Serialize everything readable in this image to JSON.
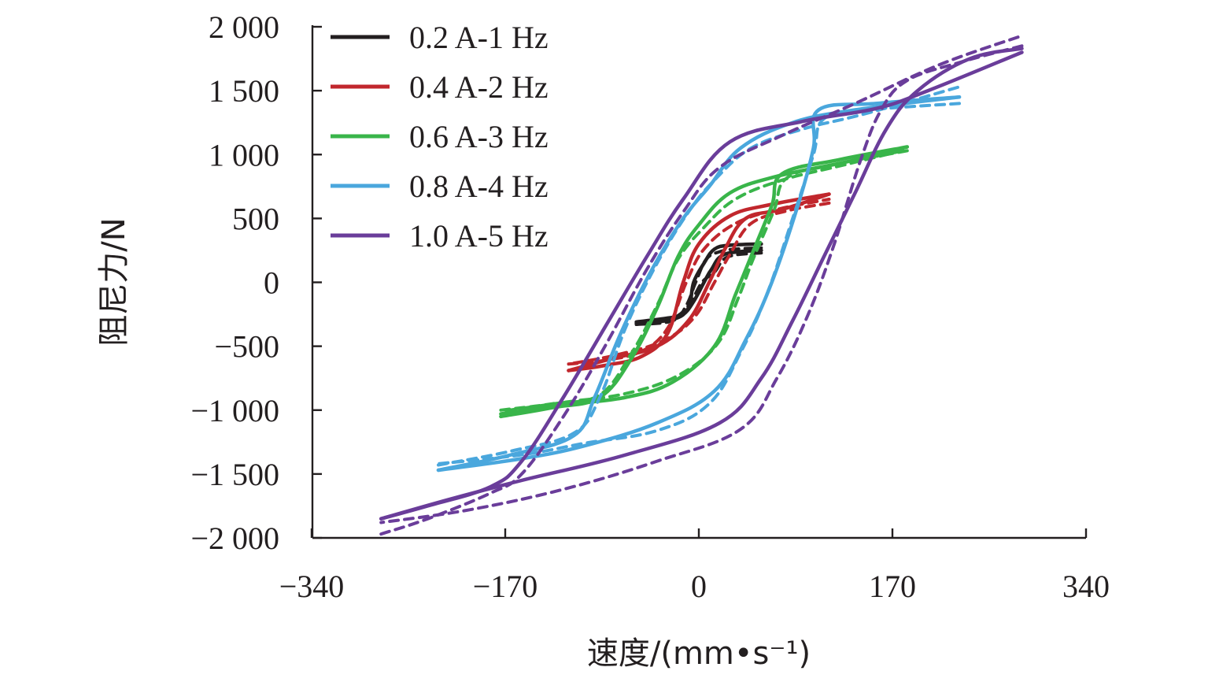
{
  "chart_data": {
    "type": "line",
    "title": "",
    "xlabel": "速度/(mm•s⁻¹)",
    "ylabel": "阻尼力/N",
    "xlim": [
      -340,
      340
    ],
    "ylim": [
      -2000,
      2000
    ],
    "x_ticks": [
      -340,
      -170,
      0,
      170,
      340
    ],
    "x_tick_labels": [
      "−340",
      "−170",
      "0",
      "170",
      "340"
    ],
    "y_ticks": [
      2000,
      1500,
      1000,
      500,
      0,
      -500,
      -1000,
      -1500,
      -2000
    ],
    "y_tick_labels": [
      "2 000",
      "1 500",
      "1 000",
      "500",
      "0",
      "−500",
      "−1 000",
      "−1 500",
      "−2 000"
    ],
    "grid": false,
    "legend_position": "top-left",
    "line_styles": {
      "measured": "solid",
      "simulated": "dashed"
    },
    "series": [
      {
        "name": "0.2 A-1 Hz",
        "color": "#231f20",
        "measured": {
          "upper": [
            [
              -60,
              -320
            ],
            [
              -25,
              -290
            ],
            [
              -10,
              -200
            ],
            [
              -5,
              0
            ],
            [
              5,
              150
            ],
            [
              15,
              260
            ],
            [
              30,
              290
            ],
            [
              60,
              300
            ]
          ],
          "lower": [
            [
              60,
              250
            ],
            [
              25,
              220
            ],
            [
              12,
              100
            ],
            [
              5,
              0
            ],
            [
              -5,
              -150
            ],
            [
              -15,
              -250
            ],
            [
              -30,
              -280
            ],
            [
              -60,
              -310
            ]
          ]
        },
        "simulated": {
          "upper": [
            [
              -60,
              -330
            ],
            [
              -25,
              -300
            ],
            [
              -12,
              -180
            ],
            [
              -3,
              0
            ],
            [
              7,
              180
            ],
            [
              20,
              240
            ],
            [
              35,
              260
            ],
            [
              60,
              270
            ]
          ],
          "lower": [
            [
              60,
              230
            ],
            [
              28,
              200
            ],
            [
              15,
              80
            ],
            [
              3,
              0
            ],
            [
              -8,
              -160
            ],
            [
              -20,
              -260
            ],
            [
              -35,
              -290
            ],
            [
              -60,
              -330
            ]
          ]
        }
      },
      {
        "name": "0.4 A-2 Hz",
        "color": "#c1272d",
        "measured": {
          "upper": [
            [
              -125,
              -690
            ],
            [
              -90,
              -650
            ],
            [
              -55,
              -580
            ],
            [
              -30,
              -400
            ],
            [
              -15,
              0
            ],
            [
              0,
              300
            ],
            [
              30,
              520
            ],
            [
              70,
              610
            ],
            [
              125,
              690
            ]
          ],
          "lower": [
            [
              125,
              690
            ],
            [
              80,
              570
            ],
            [
              45,
              500
            ],
            [
              25,
              260
            ],
            [
              10,
              0
            ],
            [
              -10,
              -300
            ],
            [
              -40,
              -500
            ],
            [
              -85,
              -600
            ],
            [
              -125,
              -690
            ]
          ]
        },
        "simulated": {
          "upper": [
            [
              -125,
              -640
            ],
            [
              -90,
              -610
            ],
            [
              -55,
              -540
            ],
            [
              -30,
              -360
            ],
            [
              -12,
              0
            ],
            [
              5,
              260
            ],
            [
              35,
              460
            ],
            [
              75,
              570
            ],
            [
              125,
              650
            ]
          ],
          "lower": [
            [
              125,
              620
            ],
            [
              85,
              560
            ],
            [
              50,
              460
            ],
            [
              30,
              220
            ],
            [
              15,
              0
            ],
            [
              -5,
              -280
            ],
            [
              -35,
              -460
            ],
            [
              -80,
              -570
            ],
            [
              -125,
              -640
            ]
          ]
        }
      },
      {
        "name": "0.6 A-3 Hz",
        "color": "#39b54a",
        "measured": {
          "upper": [
            [
              -190,
              -1050
            ],
            [
              -140,
              -980
            ],
            [
              -95,
              -900
            ],
            [
              -65,
              -600
            ],
            [
              -40,
              -200
            ],
            [
              -20,
              200
            ],
            [
              0,
              450
            ],
            [
              30,
              700
            ],
            [
              75,
              830
            ],
            [
              140,
              940
            ],
            [
              200,
              1060
            ]
          ],
          "lower": [
            [
              200,
              1060
            ],
            [
              135,
              960
            ],
            [
              80,
              850
            ],
            [
              70,
              600
            ],
            [
              50,
              200
            ],
            [
              35,
              -100
            ],
            [
              15,
              -500
            ],
            [
              -25,
              -780
            ],
            [
              -70,
              -900
            ],
            [
              -130,
              -960
            ],
            [
              -190,
              -1030
            ]
          ]
        },
        "simulated": {
          "upper": [
            [
              -190,
              -1000
            ],
            [
              -140,
              -950
            ],
            [
              -95,
              -880
            ],
            [
              -65,
              -560
            ],
            [
              -40,
              -180
            ],
            [
              -20,
              180
            ],
            [
              5,
              430
            ],
            [
              35,
              650
            ],
            [
              80,
              800
            ],
            [
              140,
              920
            ],
            [
              200,
              1040
            ]
          ],
          "lower": [
            [
              200,
              1030
            ],
            [
              135,
              930
            ],
            [
              85,
              820
            ],
            [
              72,
              560
            ],
            [
              52,
              180
            ],
            [
              38,
              -120
            ],
            [
              18,
              -480
            ],
            [
              -20,
              -730
            ],
            [
              -70,
              -870
            ],
            [
              -130,
              -940
            ],
            [
              -190,
              -1010
            ]
          ]
        }
      },
      {
        "name": "0.8 A-4 Hz",
        "color": "#4aa7dd",
        "measured": {
          "upper": [
            [
              -250,
              -1470
            ],
            [
              -180,
              -1350
            ],
            [
              -120,
              -1200
            ],
            [
              -100,
              -900
            ],
            [
              -75,
              -400
            ],
            [
              -45,
              100
            ],
            [
              -15,
              500
            ],
            [
              10,
              750
            ],
            [
              40,
              1050
            ],
            [
              90,
              1250
            ],
            [
              150,
              1350
            ],
            [
              250,
              1450
            ]
          ],
          "lower": [
            [
              250,
              1450
            ],
            [
              170,
              1400
            ],
            [
              115,
              1350
            ],
            [
              110,
              1050
            ],
            [
              95,
              600
            ],
            [
              70,
              0
            ],
            [
              45,
              -450
            ],
            [
              15,
              -850
            ],
            [
              -40,
              -1100
            ],
            [
              -110,
              -1280
            ],
            [
              -170,
              -1380
            ],
            [
              -250,
              -1470
            ]
          ]
        },
        "simulated": {
          "upper": [
            [
              -250,
              -1430
            ],
            [
              -180,
              -1320
            ],
            [
              -120,
              -1180
            ],
            [
              -95,
              -900
            ],
            [
              -70,
              -350
            ],
            [
              -40,
              150
            ],
            [
              -10,
              550
            ],
            [
              15,
              800
            ],
            [
              50,
              1050
            ],
            [
              100,
              1200
            ],
            [
              160,
              1320
            ],
            [
              250,
              1530
            ]
          ],
          "lower": [
            [
              250,
              1400
            ],
            [
              165,
              1350
            ],
            [
              120,
              1280
            ],
            [
              110,
              1000
            ],
            [
              90,
              500
            ],
            [
              65,
              -100
            ],
            [
              40,
              -550
            ],
            [
              10,
              -950
            ],
            [
              -40,
              -1160
            ],
            [
              -110,
              -1260
            ],
            [
              -170,
              -1350
            ],
            [
              -250,
              -1420
            ]
          ]
        }
      },
      {
        "name": "1.0 A-5 Hz",
        "color": "#6a3d9a",
        "measured": {
          "upper": [
            [
              -305,
              -1850
            ],
            [
              -260,
              -1750
            ],
            [
              -200,
              -1600
            ],
            [
              -170,
              -1400
            ],
            [
              -130,
              -900
            ],
            [
              -90,
              -350
            ],
            [
              -50,
              200
            ],
            [
              -15,
              650
            ],
            [
              30,
              1100
            ],
            [
              100,
              1260
            ],
            [
              170,
              1360
            ],
            [
              220,
              1500
            ],
            [
              310,
              1800
            ]
          ],
          "lower": [
            [
              310,
              1830
            ],
            [
              260,
              1750
            ],
            [
              210,
              1500
            ],
            [
              180,
              1200
            ],
            [
              150,
              700
            ],
            [
              120,
              200
            ],
            [
              90,
              -300
            ],
            [
              60,
              -750
            ],
            [
              20,
              -1100
            ],
            [
              -70,
              -1350
            ],
            [
              -170,
              -1550
            ],
            [
              -240,
              -1700
            ],
            [
              -305,
              -1850
            ]
          ]
        },
        "simulated": {
          "upper": [
            [
              -305,
              -1970
            ],
            [
              -260,
              -1850
            ],
            [
              -200,
              -1650
            ],
            [
              -170,
              -1500
            ],
            [
              -130,
              -1050
            ],
            [
              -90,
              -500
            ],
            [
              -50,
              100
            ],
            [
              -15,
              550
            ],
            [
              20,
              900
            ],
            [
              80,
              1150
            ],
            [
              150,
              1400
            ],
            [
              230,
              1700
            ],
            [
              310,
              1930
            ]
          ],
          "lower": [
            [
              310,
              1850
            ],
            [
              250,
              1720
            ],
            [
              200,
              1580
            ],
            [
              175,
              1350
            ],
            [
              155,
              950
            ],
            [
              130,
              300
            ],
            [
              105,
              -250
            ],
            [
              75,
              -750
            ],
            [
              40,
              -1150
            ],
            [
              -40,
              -1400
            ],
            [
              -130,
              -1620
            ],
            [
              -220,
              -1780
            ],
            [
              -305,
              -1880
            ]
          ]
        }
      }
    ]
  }
}
